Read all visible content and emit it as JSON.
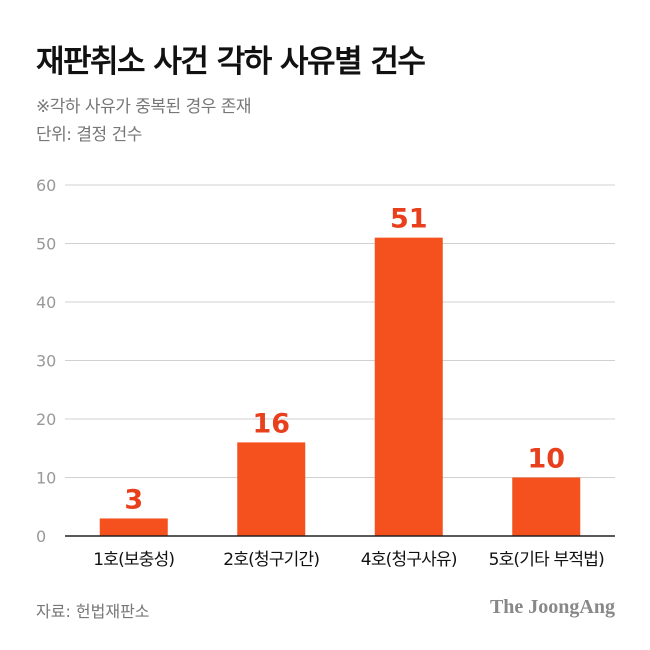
{
  "chart_data": {
    "type": "bar",
    "title": "재판취소 사건 각하 사유별 건수",
    "subtitle": "※각하 사유가 중복된 경우 존재",
    "unit": "단위: 결정 건수",
    "categories": [
      "1호(보충성)",
      "2호(청구기간)",
      "4호(청구사유)",
      "5호(기타 부적법)"
    ],
    "values": [
      3,
      16,
      51,
      10
    ],
    "ylim": [
      0,
      60
    ],
    "yticks": [
      0,
      10,
      20,
      30,
      40,
      50,
      60
    ],
    "grid": true,
    "xlabel": "",
    "ylabel": "",
    "source": "자료: 헌법재판소",
    "publisher": "The JoongAng",
    "bar_color": "#f4511e",
    "label_color": "#e8401c"
  }
}
